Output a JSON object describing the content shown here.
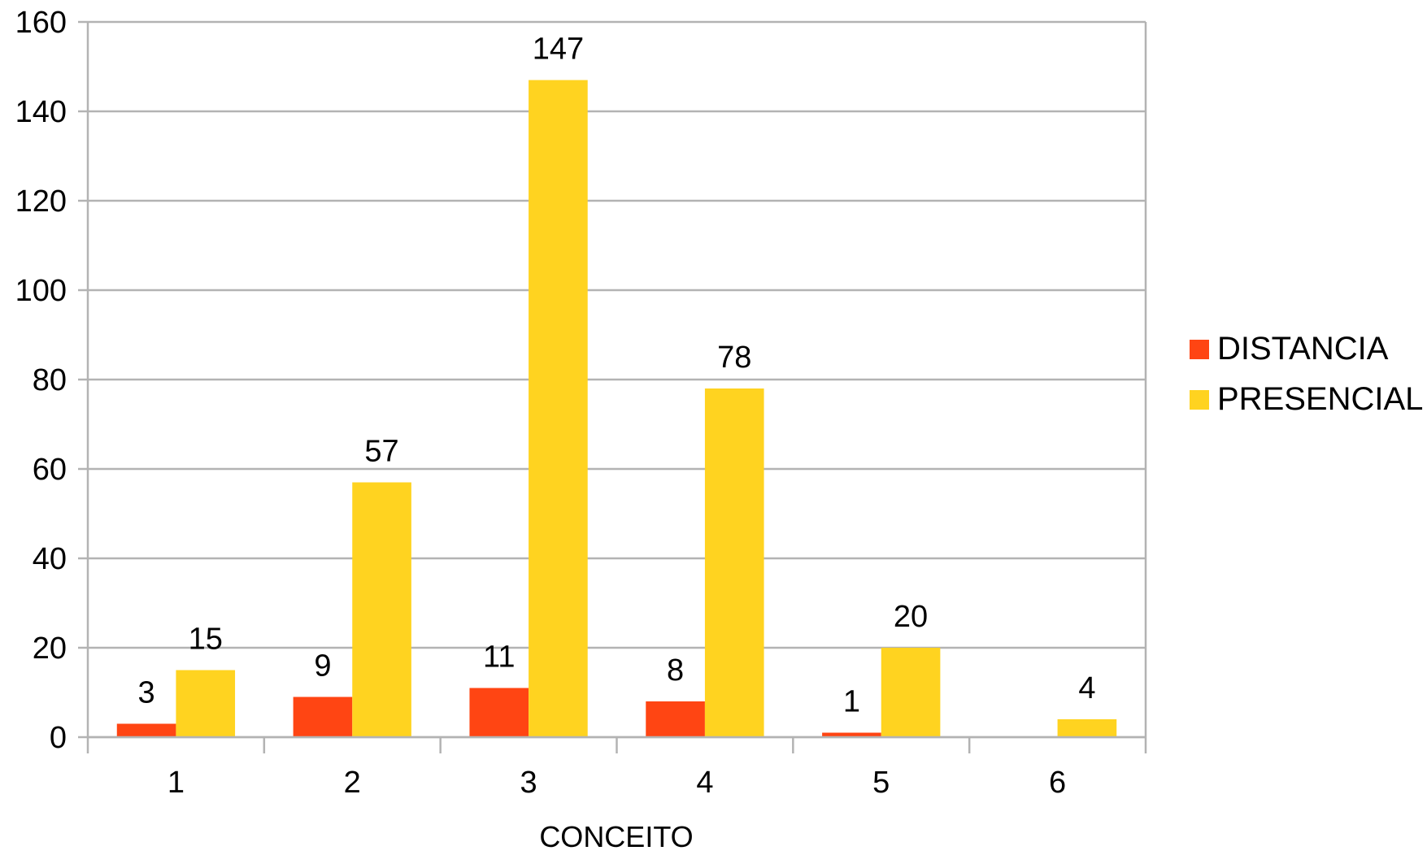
{
  "chart_data": {
    "type": "bar",
    "title": "",
    "xlabel": "CONCEITO",
    "ylabel": "",
    "categories": [
      "1",
      "2",
      "3",
      "4",
      "5",
      "6"
    ],
    "ylim": [
      0,
      160
    ],
    "yticks": [
      0,
      20,
      40,
      60,
      80,
      100,
      120,
      140,
      160
    ],
    "grid": true,
    "legend_position": "right",
    "series": [
      {
        "name": "DISTANCIA",
        "color": "#ff4513",
        "values": [
          3,
          9,
          11,
          8,
          1,
          null
        ]
      },
      {
        "name": "PRESENCIAL",
        "color": "#ffd320",
        "values": [
          15,
          57,
          147,
          78,
          20,
          4
        ]
      }
    ]
  }
}
